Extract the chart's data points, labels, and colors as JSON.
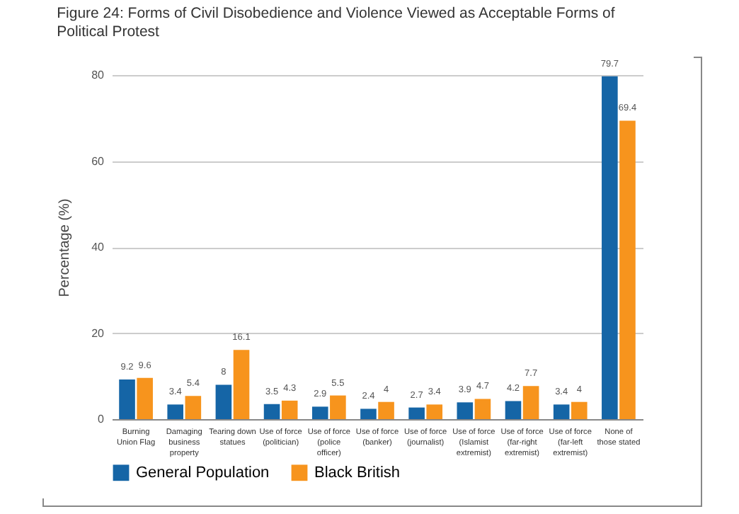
{
  "chart_data": {
    "type": "bar",
    "title": "Figure 24: Forms of Civil Disobedience and Violence Viewed as Acceptable Forms of Political Protest",
    "categories": [
      "Burning Union Flag",
      "Damaging business property",
      "Tearing down statues",
      "Use of force (politician)",
      "Use of force (police officer)",
      "Use of force (banker)",
      "Use of force (journalist)",
      "Use of force (Islamist extremist)",
      "Use of force (far-right extremist)",
      "Use of force (far-left extremist)",
      "None of those stated"
    ],
    "series": [
      {
        "name": "General Population",
        "color": "#1565a6",
        "values": [
          9.2,
          3.4,
          8,
          3.5,
          2.9,
          2.4,
          2.7,
          3.9,
          4.2,
          3.4,
          79.7
        ]
      },
      {
        "name": "Black British",
        "color": "#f7941d",
        "values": [
          9.6,
          5.4,
          16.1,
          4.3,
          5.5,
          4,
          3.4,
          4.7,
          7.7,
          4,
          69.4
        ]
      }
    ],
    "ylabel": "Percentage (%)",
    "ylim": [
      0,
      80
    ],
    "yticks": [
      0,
      20,
      40,
      60,
      80
    ],
    "grid": "y",
    "legend": "bottom",
    "data_labels": true
  }
}
